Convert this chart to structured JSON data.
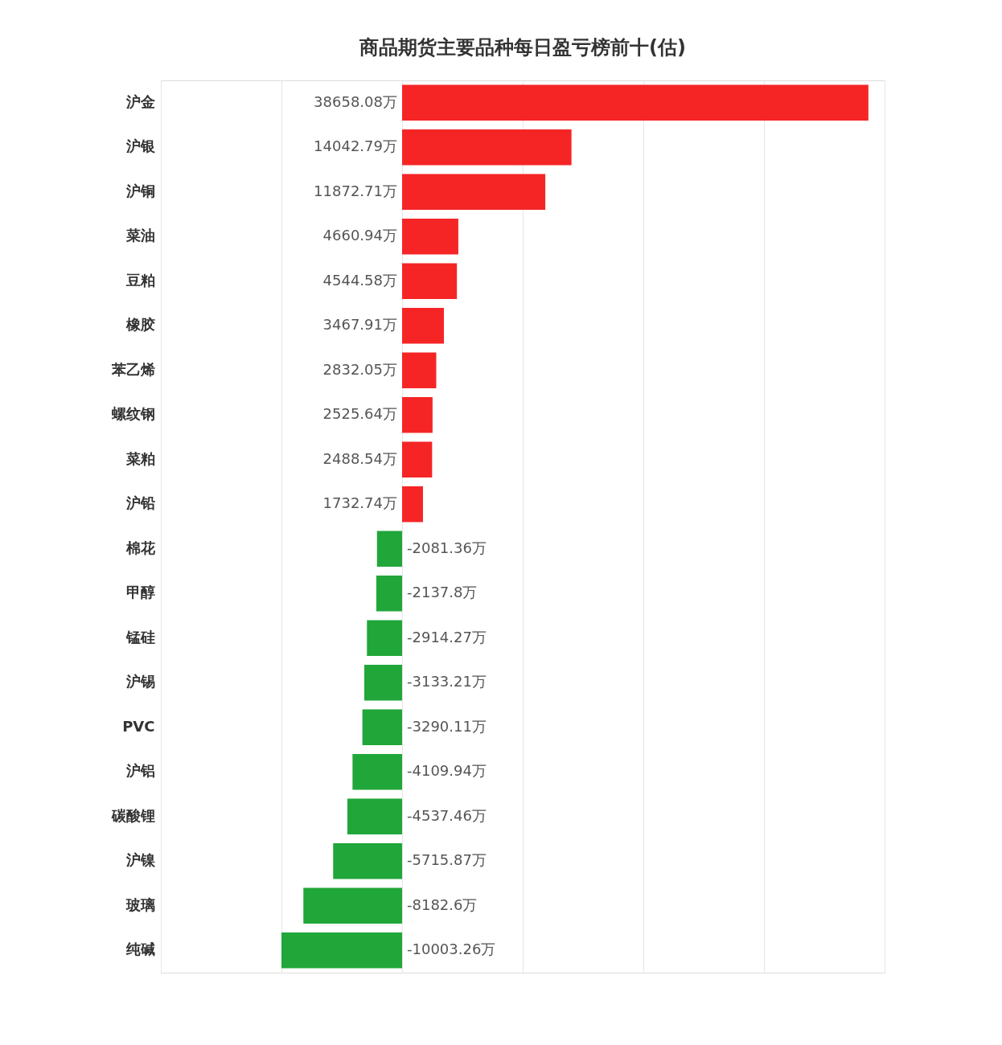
{
  "chart_data": {
    "type": "bar",
    "orientation": "horizontal",
    "title": "商品期货主要品种每日盈亏榜前十(估)",
    "categories": [
      "沪金",
      "沪银",
      "沪铜",
      "菜油",
      "豆粕",
      "橡胶",
      "苯乙烯",
      "螺纹钢",
      "菜粕",
      "沪铅",
      "棉花",
      "甲醇",
      "锰硅",
      "沪锡",
      "PVC",
      "沪铝",
      "碳酸锂",
      "沪镍",
      "玻璃",
      "纯碱"
    ],
    "values": [
      38658.08,
      14042.79,
      11872.71,
      4660.94,
      4544.58,
      3467.91,
      2832.05,
      2525.64,
      2488.54,
      1732.74,
      -2081.36,
      -2137.8,
      -2914.27,
      -3133.21,
      -3290.11,
      -4109.94,
      -4537.46,
      -5715.87,
      -8182.6,
      -10003.26
    ],
    "value_labels": [
      "38658.08万",
      "14042.79万",
      "11872.71万",
      "4660.94万",
      "4544.58万",
      "3467.91万",
      "2832.05万",
      "2525.64万",
      "2488.54万",
      "1732.74万",
      "-2081.36万",
      "-2137.8万",
      "-2914.27万",
      "-3133.21万",
      "-3290.11万",
      "-4109.94万",
      "-4537.46万",
      "-5715.87万",
      "-8182.6万",
      "-10003.26万"
    ],
    "colors": [
      "#f52526",
      "#f52526",
      "#f52526",
      "#f52526",
      "#f52526",
      "#f52526",
      "#f52526",
      "#f52526",
      "#f52526",
      "#f52526",
      "#21a63a",
      "#21a63a",
      "#21a63a",
      "#21a63a",
      "#21a63a",
      "#21a63a",
      "#21a63a",
      "#21a63a",
      "#21a63a",
      "#21a63a"
    ],
    "xlim": [
      -20000,
      40000
    ],
    "xticks": [
      {
        "value": -20000,
        "label": null
      },
      {
        "value": -10000,
        "label": null
      },
      {
        "value": 0,
        "label": null
      },
      {
        "value": 10000,
        "label": null
      },
      {
        "value": 20000,
        "label": null
      },
      {
        "value": 30000,
        "label": null
      },
      {
        "value": 40000,
        "label": null
      }
    ],
    "grid": "x",
    "tick_labels": "y"
  }
}
